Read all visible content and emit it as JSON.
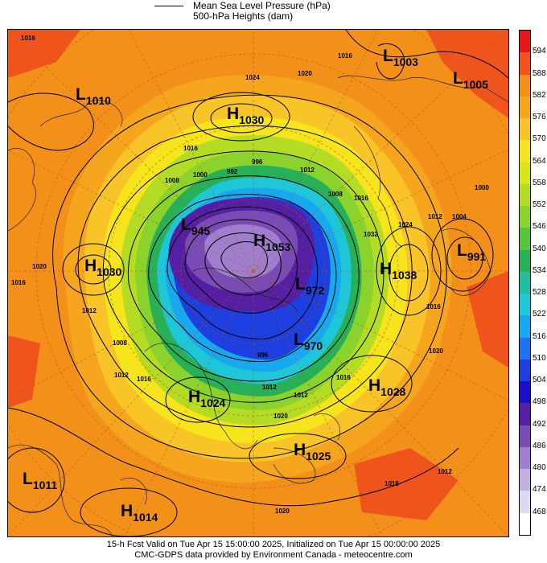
{
  "legend": {
    "line_label": "Mean Sea Level Pressure (hPa)",
    "fill_label": "500-hPa Heights (dam)"
  },
  "colorbar": {
    "levels": [
      "594",
      "588",
      "582",
      "576",
      "570",
      "564",
      "558",
      "552",
      "546",
      "540",
      "534",
      "528",
      "522",
      "516",
      "510",
      "504",
      "498",
      "492",
      "486",
      "480",
      "474",
      "468"
    ],
    "colors": [
      "#e8151b",
      "#f0541d",
      "#f2901a",
      "#f5a51e",
      "#f9c427",
      "#f6e41c",
      "#d8e61c",
      "#b4dc25",
      "#8bd22c",
      "#56c53e",
      "#27b057",
      "#21bfa0",
      "#1ec6d8",
      "#18a8ee",
      "#1d74ee",
      "#1d3fe0",
      "#1c0fcc",
      "#541fa3",
      "#7a4bb4",
      "#9f7fcd",
      "#c2b0e0",
      "#e0d7f0",
      "#ffffff"
    ]
  },
  "systems": [
    {
      "type": "L",
      "value": "1003"
    },
    {
      "type": "L",
      "value": "1005"
    },
    {
      "type": "L",
      "value": "1010"
    },
    {
      "type": "H",
      "value": "1030"
    },
    {
      "type": "L",
      "value": "945"
    },
    {
      "type": "H",
      "value": "1053"
    },
    {
      "type": "L",
      "value": "972"
    },
    {
      "type": "L",
      "value": "970"
    },
    {
      "type": "H",
      "value": "1030"
    },
    {
      "type": "H",
      "value": "1038"
    },
    {
      "type": "L",
      "value": "991"
    },
    {
      "type": "H",
      "value": "1024"
    },
    {
      "type": "H",
      "value": "1028"
    },
    {
      "type": "H",
      "value": "1025"
    },
    {
      "type": "L",
      "value": "1011"
    },
    {
      "type": "H",
      "value": "1014"
    }
  ],
  "isobar_labels": [
    "1016",
    "1024",
    "1020",
    "1016",
    "1016",
    "1008",
    "1000",
    "992",
    "996",
    "1012",
    "1008",
    "1016",
    "1032",
    "1024",
    "1012",
    "1004",
    "1000",
    "1016",
    "1020",
    "1012",
    "1008",
    "1016",
    "1020",
    "1016",
    "1012",
    "1012",
    "996",
    "1012",
    "1016",
    "1020",
    "1016",
    "1020",
    "1012"
  ],
  "footer": {
    "line1": "15-h Fcst Valid on Tue Apr 15 15:00:00 2025, Initialized on Tue Apr 15 00:00:00 2025",
    "line2": "CMC-GDPS data provided by Environment Canada - meteocentre.com"
  }
}
